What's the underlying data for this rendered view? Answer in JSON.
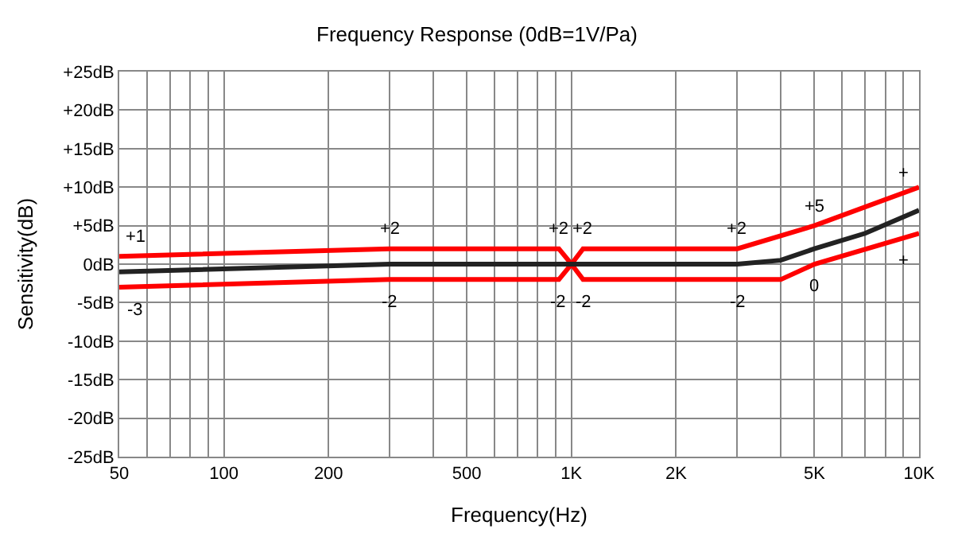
{
  "chart_data": {
    "type": "line",
    "title": "Frequency Response (0dB=1V/Pa)",
    "xlabel": "Frequency(Hz)",
    "ylabel": "Sensitivity(dB)",
    "log": "x",
    "grid": true,
    "marker": "none",
    "line_style": "solid",
    "xlim": [
      50,
      10000
    ],
    "xticks": [
      50,
      100,
      200,
      500,
      {
        "value": 1000,
        "label": "1K"
      },
      {
        "value": 2000,
        "label": "2K"
      },
      {
        "value": 5000,
        "label": "5K"
      },
      {
        "value": 10000,
        "label": "10K"
      }
    ],
    "ylim": [
      -25,
      25
    ],
    "yticks": [
      {
        "value": 25,
        "label": "+25dB"
      },
      {
        "value": 20,
        "label": "+20dB"
      },
      {
        "value": 15,
        "label": "+15dB"
      },
      {
        "value": 10,
        "label": "+10dB"
      },
      {
        "value": 5,
        "label": "+5dB"
      },
      {
        "value": 0,
        "label": "0dB"
      },
      {
        "value": -5,
        "label": "-5dB"
      },
      {
        "value": -10,
        "label": "-10dB"
      },
      {
        "value": -15,
        "label": "-15dB"
      },
      {
        "value": -20,
        "label": "-20dB"
      },
      {
        "value": -25,
        "label": "-25dB"
      }
    ],
    "series": [
      {
        "color": "#ff0000",
        "x": [
          50,
          300,
          920,
          1000,
          1080,
          3000,
          5000,
          10000
        ],
        "values": [
          1,
          2,
          2,
          0,
          2,
          2,
          5,
          10
        ]
      },
      {
        "color": "#ff0000",
        "x": [
          50,
          300,
          920,
          1000,
          1080,
          4000,
          5000,
          10000
        ],
        "values": [
          -3,
          -2,
          -2,
          0,
          -2,
          -2,
          0,
          4
        ]
      },
      {
        "color": "#222222",
        "x": [
          50,
          300,
          1000,
          3000,
          4000,
          5000,
          7000,
          10000
        ],
        "values": [
          -1,
          0,
          0,
          0,
          0.5,
          2,
          4,
          7
        ]
      }
    ],
    "annotations": [
      {
        "text": "+1",
        "x": 50,
        "y": 1
      },
      {
        "text": "-3",
        "x": 50,
        "y": -3
      },
      {
        "text": "+2",
        "x": 300,
        "y": 2
      },
      {
        "text": "-2",
        "x": 300,
        "y": -2
      },
      {
        "text": "+2",
        "x": 920,
        "y": 2
      },
      {
        "text": "+2",
        "x": 1080,
        "y": 2
      },
      {
        "text": "-2",
        "x": 920,
        "y": -2
      },
      {
        "text": "-2",
        "x": 1080,
        "y": -2
      },
      {
        "text": "+2",
        "x": 3000,
        "y": 2
      },
      {
        "text": "-2",
        "x": 3000,
        "y": -2
      },
      {
        "text": "+5",
        "x": 5000,
        "y": 5
      },
      {
        "text": "0",
        "x": 5000,
        "y": 0
      },
      {
        "text": "+",
        "x": 9000,
        "y": 9.2
      },
      {
        "text": "+",
        "x": 9000,
        "y": 3.4
      }
    ]
  }
}
